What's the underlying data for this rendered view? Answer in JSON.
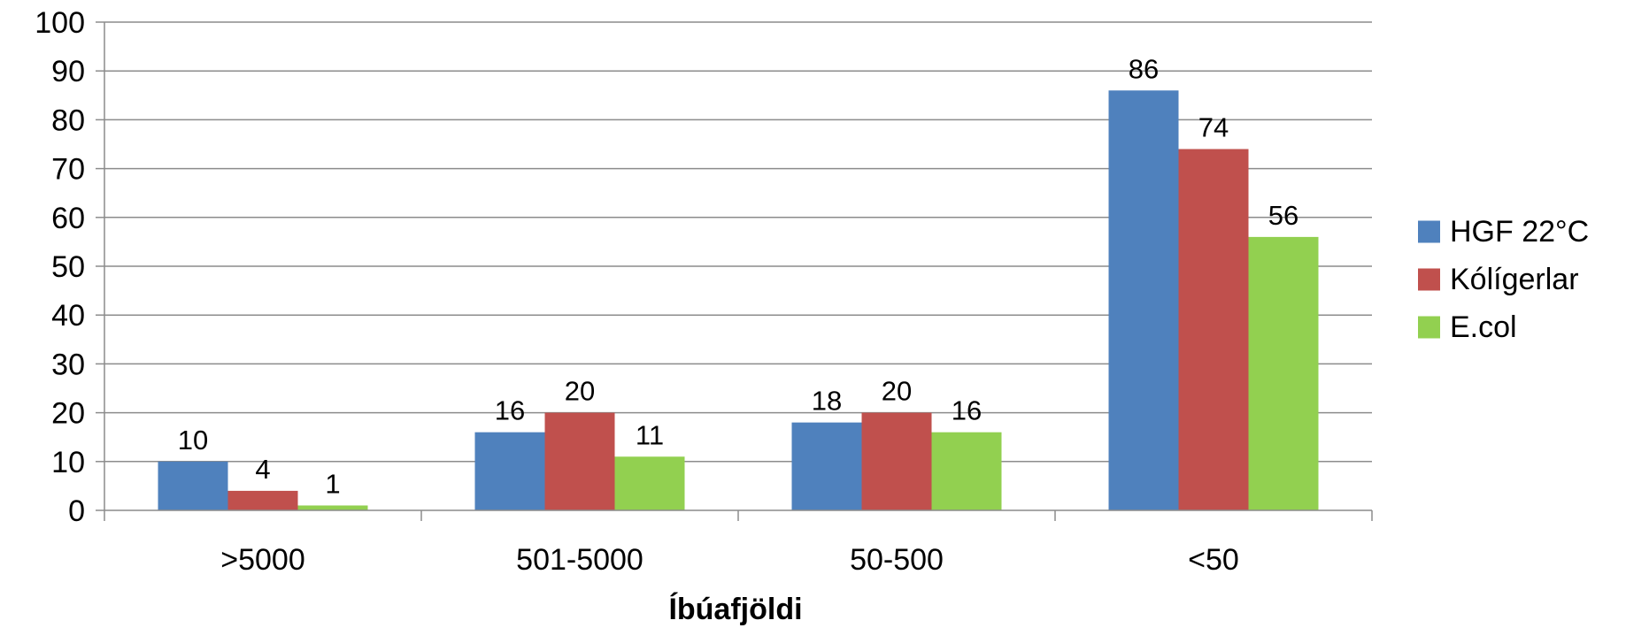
{
  "chart_data": {
    "type": "bar",
    "title": "",
    "xlabel": "Íbúafjöldi",
    "ylabel": "",
    "categories": [
      ">5000",
      "501-5000",
      "50-500",
      "<50"
    ],
    "series": [
      {
        "name": "HGF 22°C",
        "color": "#4F81BD",
        "values": [
          10,
          16,
          18,
          86
        ]
      },
      {
        "name": "Kólígerlar",
        "color": "#C0504D",
        "values": [
          4,
          20,
          20,
          74
        ]
      },
      {
        "name": "E.col",
        "color": "#92D050",
        "values": [
          1,
          11,
          16,
          56
        ]
      }
    ],
    "ylim": [
      0,
      100
    ],
    "yticks": [
      0,
      10,
      20,
      30,
      40,
      50,
      60,
      70,
      80,
      90,
      100
    ],
    "grid": true,
    "legend": "right",
    "data_labels": true
  }
}
